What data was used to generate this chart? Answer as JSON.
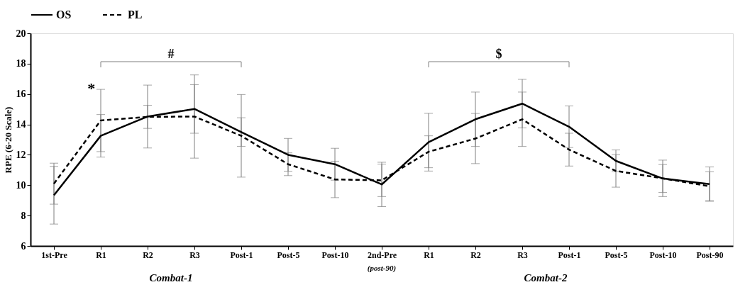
{
  "chart_data": {
    "type": "line",
    "ylabel": "RPE (6-20 Scale)",
    "categories": [
      "1st-Pre",
      "R1",
      "R2",
      "R3",
      "Post-1",
      "Post-5",
      "Post-10",
      "2nd-Pre",
      "R1",
      "R2",
      "R3",
      "Post-1",
      "Post-5",
      "Post-10",
      "Post-90"
    ],
    "series": [
      {
        "name": "OS",
        "color": "#000000",
        "line_style": "solid",
        "values": [
          9.34,
          13.25,
          14.52,
          15.02,
          13.5,
          12.0,
          11.38,
          10.05,
          12.83,
          14.34,
          15.37,
          13.85,
          11.6,
          10.44,
          10.07
        ],
        "errors": [
          1.9,
          1.4,
          2.07,
          1.6,
          0.94,
          1.08,
          1.05,
          1.46,
          1.9,
          1.79,
          1.6,
          1.37,
          0.72,
          0.92,
          1.13
        ]
      },
      {
        "name": "PL",
        "color": "#000000",
        "line_style": "dashed",
        "values": [
          10.1,
          14.26,
          14.5,
          14.52,
          13.25,
          11.38,
          10.38,
          10.32,
          12.2,
          13.07,
          14.34,
          12.34,
          10.94,
          10.45,
          9.93
        ],
        "errors": [
          1.35,
          2.05,
          0.76,
          2.74,
          2.72,
          0.75,
          1.2,
          1.07,
          1.05,
          1.65,
          1.79,
          1.08,
          1.07,
          1.2,
          0.95
        ]
      }
    ],
    "ylim": [
      6,
      20
    ],
    "yticks": [
      6,
      8,
      10,
      12,
      14,
      16,
      18,
      20
    ],
    "grid": false,
    "legend": "top",
    "marker": "none",
    "annotations": [
      "*",
      "#",
      "$",
      "(post-90)",
      "Combat-1",
      "Combat-2"
    ]
  }
}
